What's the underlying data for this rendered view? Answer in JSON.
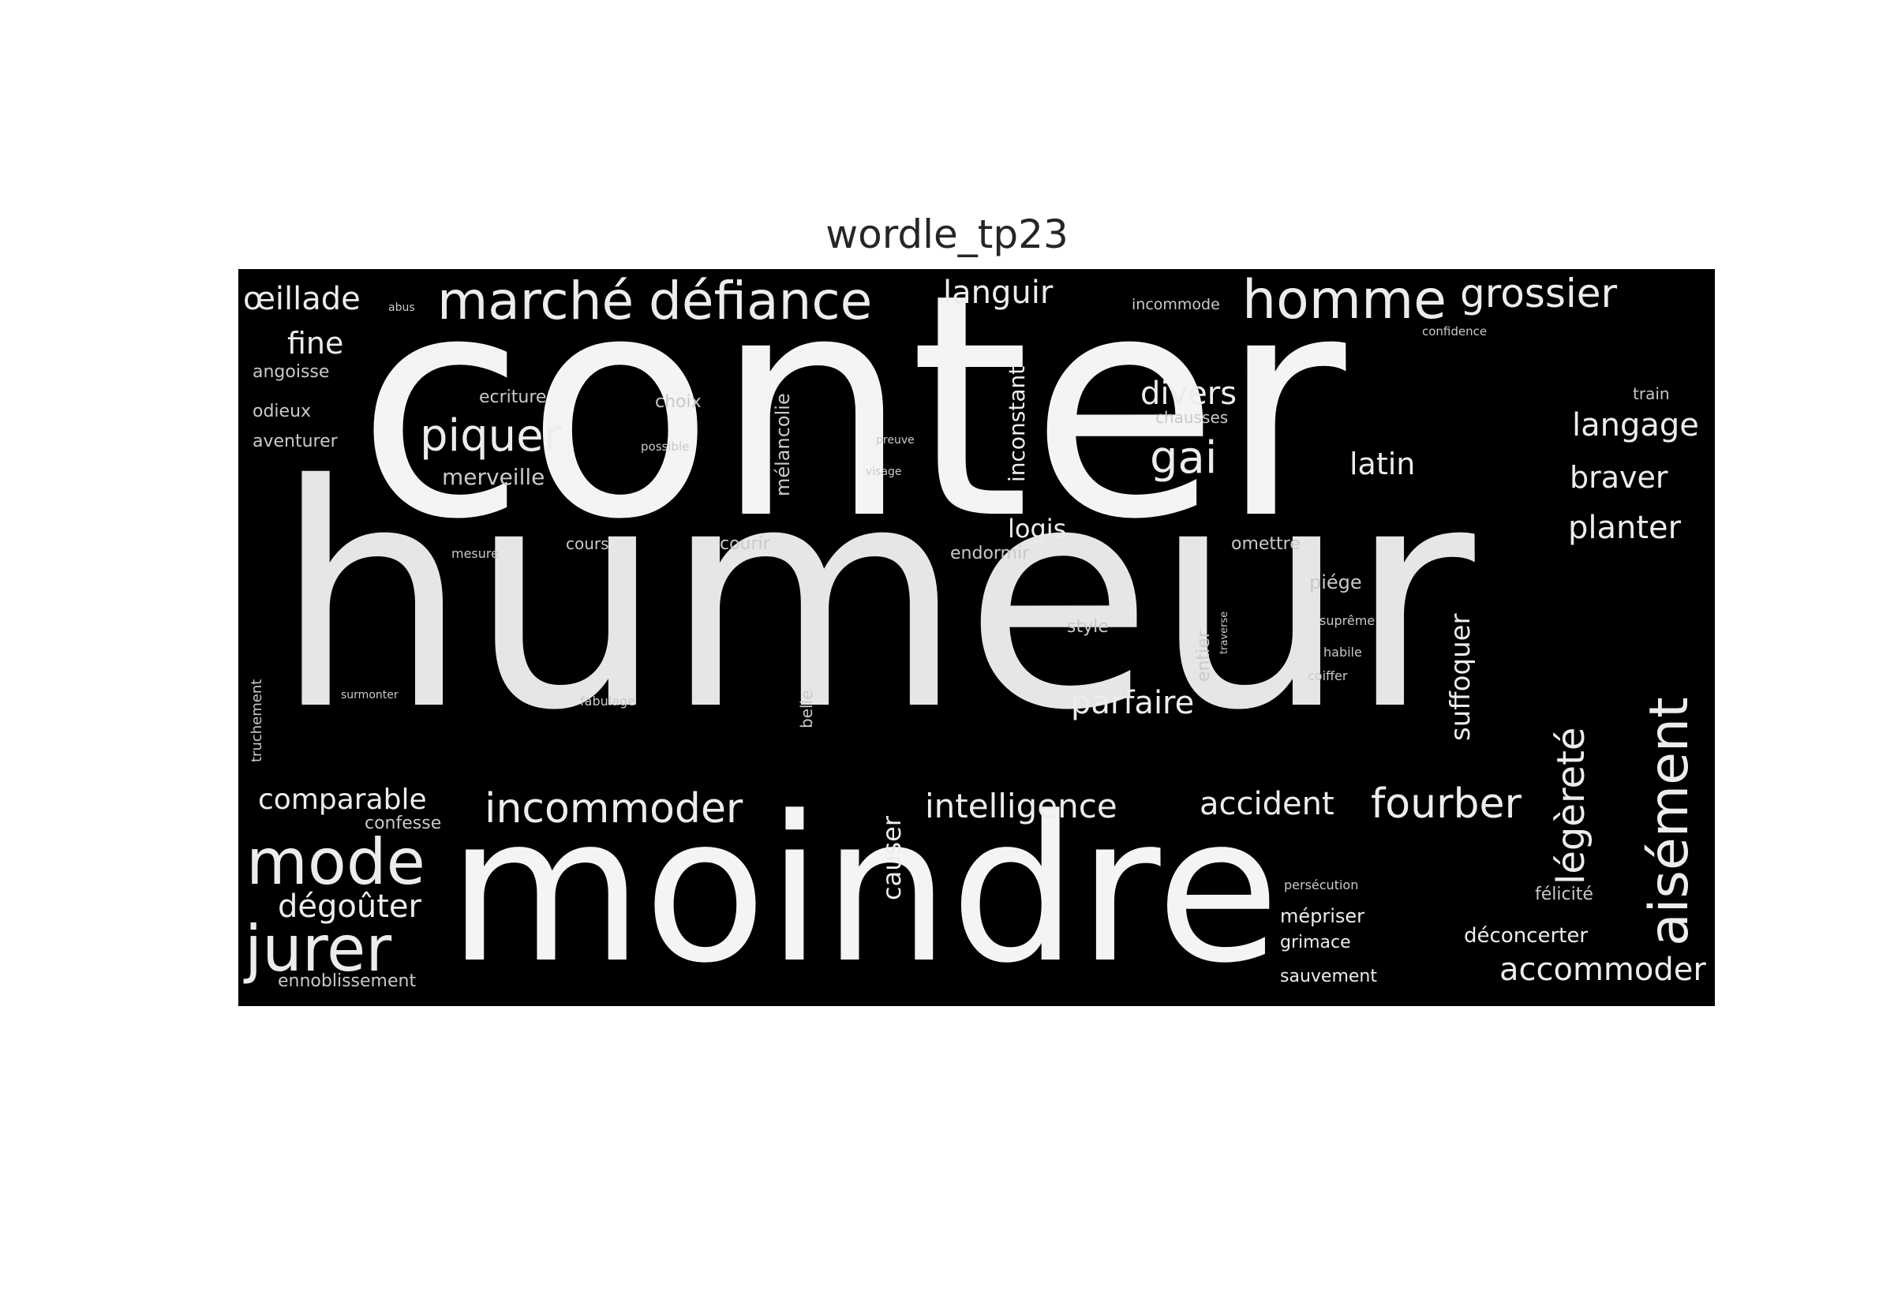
{
  "figure": {
    "title": "wordle_tp23"
  },
  "wordcloud": {
    "background": "#000000",
    "text_color": "#f0f0f0",
    "words": {
      "humeur": "humeur",
      "conter": "conter",
      "moindre": "moindre",
      "aisement": "aisément",
      "jurer": "jurer",
      "mode": "mode",
      "homme": "homme",
      "marche": "marché",
      "defiance": "défiance",
      "grossier": "grossier",
      "incommoder": "incommoder",
      "fourber": "fourber",
      "piquer": "piquer",
      "legerete": "légèreté",
      "oeillade": "œillade",
      "gai": "gai",
      "intelligence": "intelligence",
      "accident": "accident",
      "accommoder": "accommoder",
      "langage": "langage",
      "languir": "languir",
      "planter": "planter",
      "braver": "braver",
      "divers": "divers",
      "parfaire": "parfaire",
      "comparable": "comparable",
      "degouter": "dégoûter",
      "suffoquer": "suffoquer",
      "fine": "fine",
      "latin": "latin",
      "causer": "causer",
      "inconstant": "inconstant",
      "logis": "logis",
      "merveille": "merveille",
      "melancolie": "mélancolie",
      "deconcerter": "déconcerter",
      "angoisse": "angoisse",
      "odieux": "odieux",
      "aventurer": "aventurer",
      "ecriture": "ecriture",
      "choix": "choix",
      "chausses": "chausses",
      "train": "train",
      "confidence": "confidence",
      "incommode": "incommode",
      "abus": "abus",
      "preuve": "preuve",
      "possible": "possible",
      "visage": "visage",
      "courir": "courir",
      "cours": "cours",
      "mesure": "mesure",
      "endormir": "endormir",
      "omettre": "omettre",
      "piege": "piége",
      "style": "style",
      "entier": "entier",
      "traverse": "traverse",
      "suprême": "suprême",
      "habile": "habile",
      "coiffer": "coiffer",
      "truchement": "truchement",
      "surmonter": "surmonter",
      "fabulage": "fabulage",
      "belle": "belle",
      "confesse": "confesse",
      "persecution": "persécution",
      "mepriser": "mépriser",
      "grimace": "grimace",
      "sauvement": "sauvement",
      "felicite": "félicité",
      "ennoblissement": "ennoblissement"
    }
  }
}
